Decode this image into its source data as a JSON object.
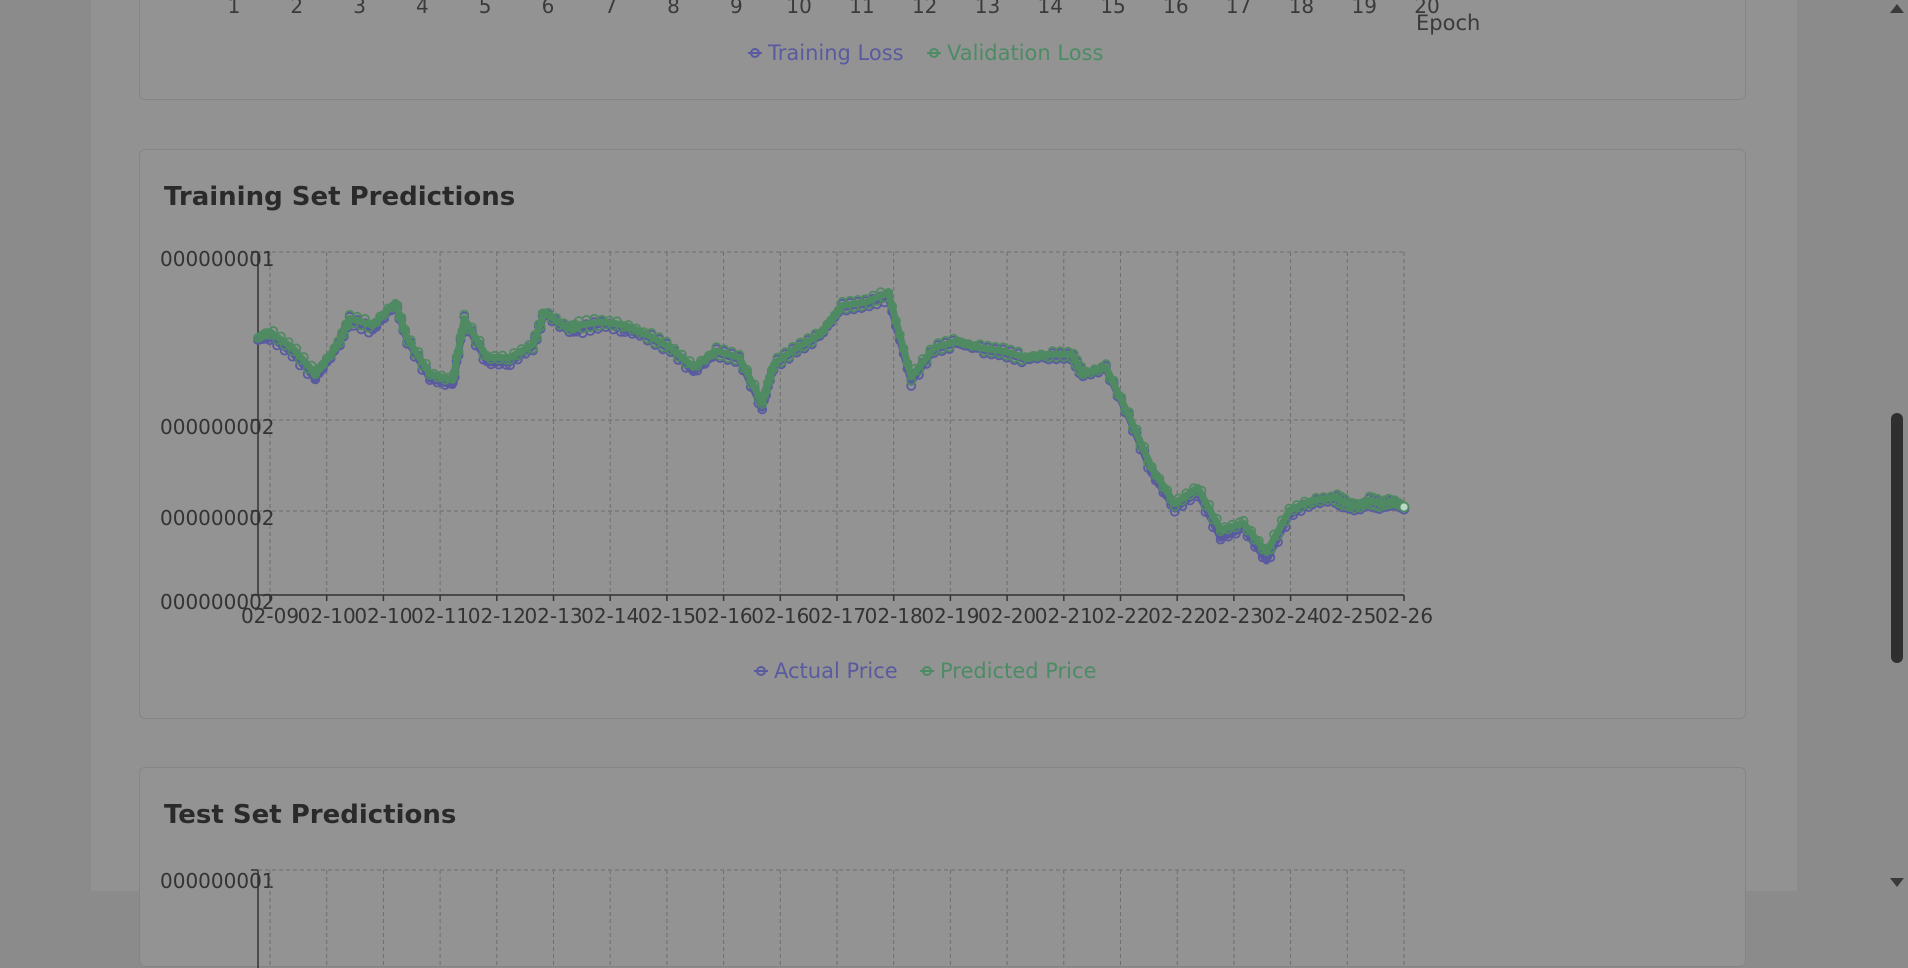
{
  "loss_chart": {
    "epoch_ticks": [
      "1",
      "2",
      "3",
      "4",
      "5",
      "6",
      "7",
      "8",
      "9",
      "10",
      "11",
      "12",
      "13",
      "14",
      "15",
      "16",
      "17",
      "18",
      "19",
      "20"
    ],
    "x_axis_label": "Epoch",
    "legend": [
      {
        "name": "Training Loss",
        "color": "#5a5aa0"
      },
      {
        "name": "Validation Loss",
        "color": "#4c8c64"
      }
    ]
  },
  "train_card": {
    "title": "Training Set Predictions"
  },
  "test_card": {
    "title": "Test Set Predictions",
    "y_tick_top": "000000001"
  },
  "colors": {
    "actual": "#5a5aa0",
    "predicted": "#4f8a62",
    "background": "#929292",
    "grid": "#6e6e6e"
  },
  "chart_data": {
    "type": "line",
    "title": "Training Set Predictions",
    "xlabel": "",
    "ylabel": "",
    "x_tick_labels": [
      "02-09",
      "02-10",
      "02-10",
      "02-11",
      "02-12",
      "02-13",
      "02-14",
      "02-15",
      "02-16",
      "02-16",
      "02-17",
      "02-18",
      "02-19",
      "02-20",
      "02-21",
      "02-22",
      "02-22",
      "02-23",
      "02-24",
      "02-25",
      "02-26"
    ],
    "y_tick_labels": [
      "000000001",
      "000000002",
      "000000002",
      "000000002"
    ],
    "ylim": [
      0,
      1
    ],
    "grid": true,
    "legend_position": "bottom",
    "series": [
      {
        "name": "Actual Price",
        "x": [
          0,
          0.01,
          0.03,
          0.05,
          0.07,
          0.08,
          0.1,
          0.12,
          0.13,
          0.15,
          0.17,
          0.18,
          0.2,
          0.22,
          0.24,
          0.25,
          0.27,
          0.28,
          0.3,
          0.32,
          0.34,
          0.36,
          0.38,
          0.4,
          0.42,
          0.44,
          0.45,
          0.47,
          0.49,
          0.51,
          0.53,
          0.55,
          0.57,
          0.59,
          0.61,
          0.63,
          0.65,
          0.67,
          0.69,
          0.71,
          0.72,
          0.74,
          0.76,
          0.78,
          0.8,
          0.82,
          0.84,
          0.86,
          0.88,
          0.9,
          0.92,
          0.94,
          0.95,
          0.96,
          0.97,
          0.98,
          0.99,
          1
        ],
        "values": [
          0.76,
          0.77,
          0.72,
          0.64,
          0.74,
          0.82,
          0.79,
          0.87,
          0.76,
          0.64,
          0.62,
          0.82,
          0.69,
          0.69,
          0.74,
          0.84,
          0.79,
          0.79,
          0.81,
          0.79,
          0.77,
          0.73,
          0.66,
          0.72,
          0.7,
          0.55,
          0.68,
          0.73,
          0.77,
          0.86,
          0.87,
          0.89,
          0.63,
          0.73,
          0.75,
          0.73,
          0.72,
          0.7,
          0.71,
          0.71,
          0.65,
          0.67,
          0.52,
          0.35,
          0.24,
          0.29,
          0.15,
          0.18,
          0.08,
          0.22,
          0.26,
          0.27,
          0.25,
          0.24,
          0.26,
          0.25,
          0.26,
          0.24
        ]
      },
      {
        "name": "Predicted Price",
        "x": [
          0,
          0.01,
          0.03,
          0.05,
          0.07,
          0.08,
          0.1,
          0.12,
          0.13,
          0.15,
          0.17,
          0.18,
          0.2,
          0.22,
          0.24,
          0.25,
          0.27,
          0.28,
          0.3,
          0.32,
          0.34,
          0.36,
          0.38,
          0.4,
          0.42,
          0.44,
          0.45,
          0.47,
          0.49,
          0.51,
          0.53,
          0.55,
          0.57,
          0.59,
          0.61,
          0.63,
          0.65,
          0.67,
          0.69,
          0.71,
          0.72,
          0.74,
          0.76,
          0.78,
          0.8,
          0.82,
          0.84,
          0.86,
          0.88,
          0.9,
          0.92,
          0.94,
          0.95,
          0.96,
          0.97,
          0.98,
          0.99,
          1
        ],
        "values": [
          0.76,
          0.78,
          0.73,
          0.65,
          0.74,
          0.82,
          0.8,
          0.87,
          0.76,
          0.65,
          0.63,
          0.82,
          0.7,
          0.7,
          0.74,
          0.84,
          0.79,
          0.8,
          0.81,
          0.8,
          0.77,
          0.73,
          0.67,
          0.72,
          0.7,
          0.56,
          0.68,
          0.73,
          0.77,
          0.86,
          0.87,
          0.9,
          0.64,
          0.73,
          0.75,
          0.73,
          0.72,
          0.7,
          0.71,
          0.71,
          0.65,
          0.67,
          0.52,
          0.36,
          0.25,
          0.3,
          0.17,
          0.19,
          0.1,
          0.23,
          0.26,
          0.27,
          0.25,
          0.24,
          0.26,
          0.25,
          0.26,
          0.24
        ]
      }
    ]
  }
}
